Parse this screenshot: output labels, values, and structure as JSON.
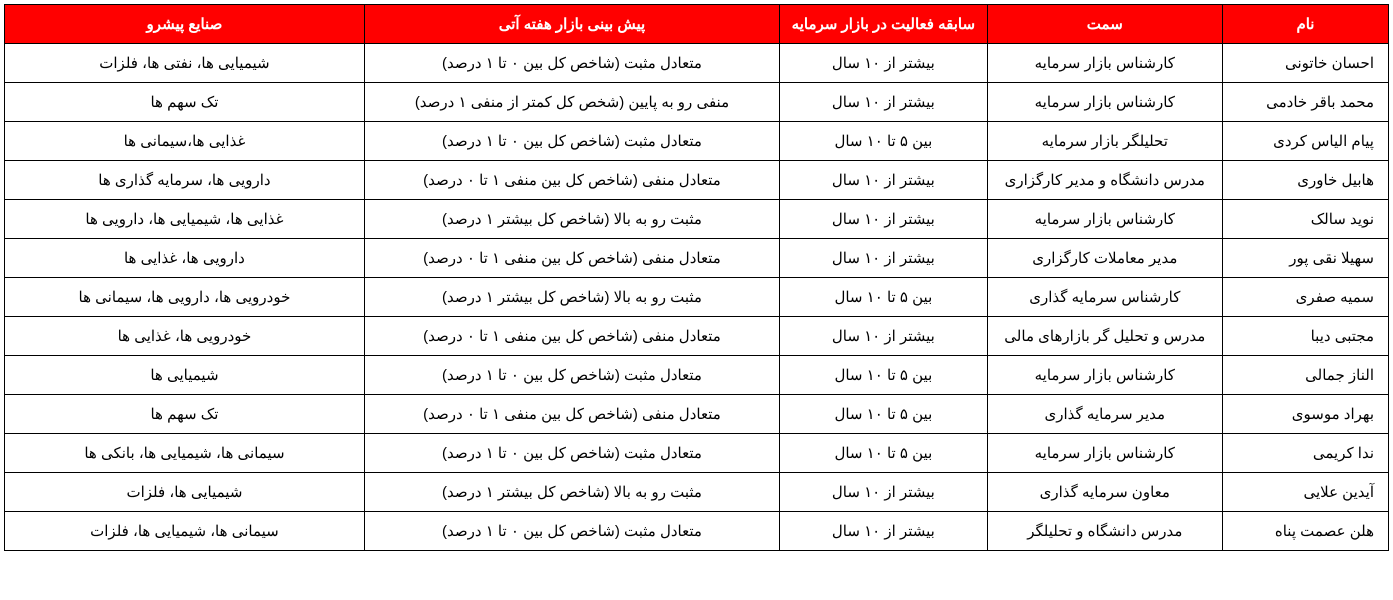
{
  "table": {
    "header_bg": "#ff0000",
    "header_fg": "#ffffff",
    "border_color": "#000000",
    "columns": [
      {
        "key": "name",
        "label": "نام",
        "width": "12%",
        "align": "right"
      },
      {
        "key": "role",
        "label": "سمت",
        "width": "17%",
        "align": "center"
      },
      {
        "key": "experience",
        "label": "سابقه فعالیت در بازار سرمایه",
        "width": "15%",
        "align": "center"
      },
      {
        "key": "forecast",
        "label": "پیش بینی بازار هفته آتی",
        "width": "30%",
        "align": "center"
      },
      {
        "key": "industries",
        "label": "صنایع پیشرو",
        "width": "26%",
        "align": "center"
      }
    ],
    "rows": [
      {
        "name": "احسان خاتونی",
        "role": "کارشناس بازار سرمایه",
        "experience": "بیشتر از ۱۰ سال",
        "forecast": "متعادل مثبت (شاخص کل بین ۰ تا ۱ درصد)",
        "industries": "شیمیایی ها، نفتی ها، فلزات"
      },
      {
        "name": "محمد باقر خادمی",
        "role": "کارشناس بازار سرمایه",
        "experience": "بیشتر از ۱۰ سال",
        "forecast": "منفی رو به پایین (شخص کل کمتر از منفی ۱ درصد)",
        "industries": "تک سهم ها"
      },
      {
        "name": "پیام الیاس کردی",
        "role": "تحلیلگر بازار سرمایه",
        "experience": "بین ۵ تا ۱۰ سال",
        "forecast": "متعادل مثبت (شاخص کل بین ۰ تا ۱ درصد)",
        "industries": "غذایی ها،سیمانی ها"
      },
      {
        "name": "هابیل خاوری",
        "role": "مدرس دانشگاه و مدیر کارگزاری",
        "experience": "بیشتر از ۱۰ سال",
        "forecast": "متعادل منفی (شاخص کل بین منفی ۱ تا ۰ درصد)",
        "industries": "دارویی ها، سرمایه گذاری ها"
      },
      {
        "name": "نوید سالک",
        "role": "کارشناس بازار سرمایه",
        "experience": "بیشتر از ۱۰ سال",
        "forecast": "مثبت رو به بالا (شاخص کل بیشتر ۱ درصد)",
        "industries": "غذایی ها، شیمیایی ها، دارویی ها"
      },
      {
        "name": "سهیلا نقی پور",
        "role": "مدیر معاملات کارگزاری",
        "experience": "بیشتر از ۱۰ سال",
        "forecast": "متعادل منفی (شاخص کل بین منفی ۱ تا ۰ درصد)",
        "industries": "دارویی ها، غذایی ها"
      },
      {
        "name": "سمیه صفری",
        "role": "کارشناس سرمایه گذاری",
        "experience": "بین ۵ تا ۱۰ سال",
        "forecast": "مثبت رو به بالا (شاخص کل بیشتر ۱ درصد)",
        "industries": "خودرویی ها، دارویی ها، سیمانی ها"
      },
      {
        "name": "مجتبی دیبا",
        "role": "مدرس و تحلیل گر بازارهای مالی",
        "experience": "بیشتر از ۱۰ سال",
        "forecast": "متعادل منفی (شاخص کل بین منفی ۱ تا ۰ درصد)",
        "industries": "خودرویی ها، غذایی ها"
      },
      {
        "name": "الناز جمالی",
        "role": "کارشناس بازار سرمایه",
        "experience": "بین ۵ تا ۱۰ سال",
        "forecast": "متعادل مثبت (شاخص کل بین ۰ تا ۱ درصد)",
        "industries": "شیمیایی ها"
      },
      {
        "name": "بهراد موسوی",
        "role": "مدیر سرمایه گذاری",
        "experience": "بین ۵ تا ۱۰ سال",
        "forecast": "متعادل منفی (شاخص کل بین منفی ۱ تا ۰ درصد)",
        "industries": "تک سهم ها"
      },
      {
        "name": "ندا کریمی",
        "role": "کارشناس بازار سرمایه",
        "experience": "بین ۵ تا ۱۰ سال",
        "forecast": "متعادل مثبت (شاخص کل بین ۰ تا ۱ درصد)",
        "industries": "سیمانی ها، شیمیایی ها، بانکی ها"
      },
      {
        "name": "آیدین علایی",
        "role": "معاون سرمایه گذاری",
        "experience": "بیشتر از ۱۰ سال",
        "forecast": "مثبت رو به بالا (شاخص کل بیشتر ۱ درصد)",
        "industries": "شیمیایی ها، فلزات"
      },
      {
        "name": "هلن عصمت پناه",
        "role": "مدرس دانشگاه و تحلیلگر",
        "experience": "بیشتر از ۱۰ سال",
        "forecast": "متعادل مثبت (شاخص کل بین ۰ تا ۱ درصد)",
        "industries": "سیمانی ها، شیمیایی ها، فلزات"
      }
    ]
  }
}
